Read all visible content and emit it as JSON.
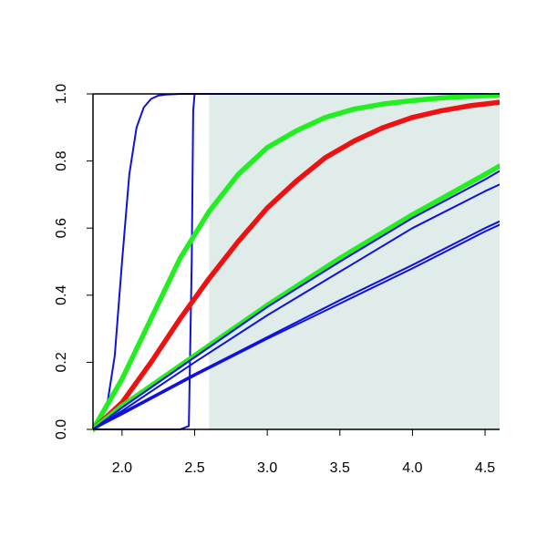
{
  "chart_data": {
    "type": "line",
    "title": "",
    "xlabel": "",
    "ylabel": "",
    "xlim": [
      1.8,
      4.6
    ],
    "ylim": [
      0,
      1
    ],
    "x_ticks": [
      2.0,
      2.5,
      3.0,
      3.5,
      4.0,
      4.5
    ],
    "x_tick_labels": [
      "2.0",
      "2.5",
      "3.0",
      "3.5",
      "4.0",
      "4.5"
    ],
    "y_ticks": [
      0.0,
      0.2,
      0.4,
      0.6,
      0.8,
      1.0
    ],
    "y_tick_labels": [
      "0.0",
      "0.2",
      "0.4",
      "0.6",
      "0.8",
      "1.0"
    ],
    "grid": false,
    "legend": "none",
    "shaded_region": {
      "x_from": 2.6,
      "x_to": 4.6,
      "color": "#dfecea"
    },
    "colors": {
      "blue": "#1111dd",
      "green": "#22ee22",
      "red": "#ee1111",
      "axis": "#000000"
    },
    "series": [
      {
        "color": "blue",
        "weight": "thin",
        "x": [
          1.8,
          1.9,
          1.95,
          2.0,
          2.05,
          2.1,
          2.15,
          2.2,
          2.25,
          2.3,
          2.4,
          2.5,
          2.6,
          3.0,
          4.6
        ],
        "y": [
          0.0,
          0.08,
          0.22,
          0.5,
          0.76,
          0.9,
          0.96,
          0.985,
          0.995,
          0.998,
          1.0,
          1.0,
          1.0,
          1.0,
          1.0
        ]
      },
      {
        "color": "blue",
        "weight": "thin",
        "x": [
          1.8,
          2.0,
          2.4,
          2.46,
          2.48,
          2.49,
          2.5,
          2.51,
          2.55,
          3.0,
          4.6
        ],
        "y": [
          0.0,
          0.0,
          0.0,
          0.01,
          0.5,
          0.95,
          1.0,
          1.0,
          1.0,
          1.0,
          1.0
        ]
      },
      {
        "color": "green",
        "weight": "thick",
        "x": [
          1.8,
          2.0,
          2.2,
          2.4,
          2.6,
          2.8,
          3.0,
          3.2,
          3.4,
          3.6,
          3.8,
          4.0,
          4.2,
          4.4,
          4.6
        ],
        "y": [
          0.0,
          0.15,
          0.33,
          0.51,
          0.65,
          0.76,
          0.84,
          0.89,
          0.93,
          0.955,
          0.97,
          0.98,
          0.988,
          0.993,
          0.996
        ]
      },
      {
        "color": "red",
        "weight": "thick",
        "x": [
          1.8,
          2.0,
          2.2,
          2.4,
          2.6,
          2.8,
          3.0,
          3.2,
          3.4,
          3.6,
          3.8,
          4.0,
          4.2,
          4.4,
          4.6
        ],
        "y": [
          0.0,
          0.08,
          0.2,
          0.33,
          0.45,
          0.56,
          0.66,
          0.74,
          0.81,
          0.86,
          0.9,
          0.93,
          0.95,
          0.965,
          0.975
        ]
      },
      {
        "color": "green",
        "weight": "thick",
        "x": [
          1.8,
          2.0,
          2.5,
          3.0,
          3.5,
          4.0,
          4.5,
          4.6
        ],
        "y": [
          0.0,
          0.07,
          0.22,
          0.37,
          0.51,
          0.64,
          0.76,
          0.785
        ]
      },
      {
        "color": "blue",
        "weight": "thin",
        "x": [
          1.8,
          2.0,
          2.5,
          3.0,
          3.5,
          4.0,
          4.5,
          4.6
        ],
        "y": [
          0.0,
          0.065,
          0.215,
          0.365,
          0.5,
          0.63,
          0.745,
          0.77
        ]
      },
      {
        "color": "blue",
        "weight": "thin",
        "x": [
          1.8,
          2.0,
          2.5,
          3.0,
          3.5,
          4.0,
          4.5,
          4.6
        ],
        "y": [
          0.0,
          0.055,
          0.2,
          0.34,
          0.47,
          0.6,
          0.71,
          0.73
        ]
      },
      {
        "color": "blue",
        "weight": "thin",
        "x": [
          1.8,
          2.0,
          2.5,
          3.0,
          3.5,
          4.0,
          4.5,
          4.6
        ],
        "y": [
          0.0,
          0.05,
          0.165,
          0.275,
          0.385,
          0.49,
          0.6,
          0.62
        ]
      },
      {
        "color": "blue",
        "weight": "thin",
        "x": [
          1.8,
          2.0,
          2.5,
          3.0,
          3.5,
          4.0,
          4.5,
          4.6
        ],
        "y": [
          0.0,
          0.045,
          0.16,
          0.27,
          0.375,
          0.48,
          0.59,
          0.61
        ]
      }
    ]
  }
}
